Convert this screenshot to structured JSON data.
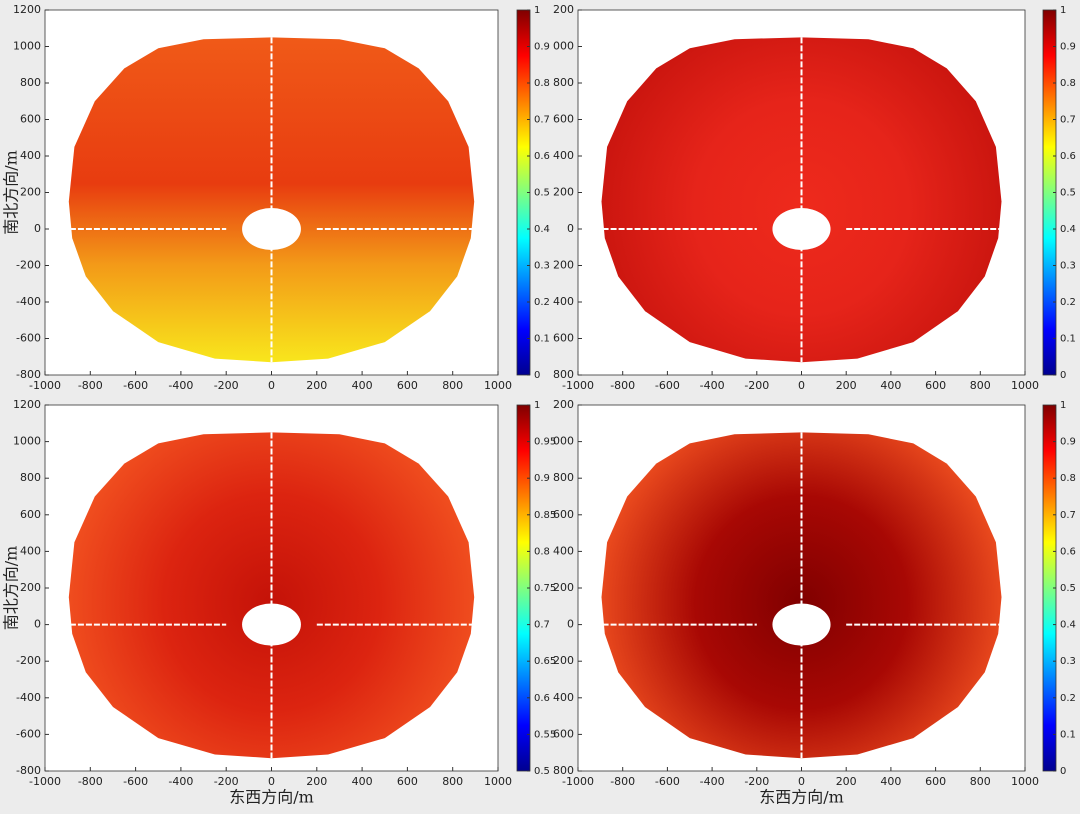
{
  "chart_data": [
    {
      "type": "heatmap",
      "ylabel": "南北方向/m",
      "xlim": [
        -1000,
        1000
      ],
      "xticks": [
        -1000,
        -800,
        -600,
        -400,
        -200,
        0,
        200,
        400,
        600,
        800,
        1000
      ],
      "ylim": [
        -800,
        1200
      ],
      "yticks": [
        -800,
        -600,
        -400,
        -200,
        0,
        200,
        400,
        600,
        800,
        1000,
        1200
      ],
      "colormap": "jet",
      "clim": [
        0,
        1
      ],
      "cticks": [
        0,
        0.1,
        0.2,
        0.3,
        0.4,
        0.5,
        0.6,
        0.7,
        0.8,
        0.9,
        1
      ],
      "field": {
        "style": "vertical",
        "colors": [
          "#f05a18",
          "#e83c10",
          "#f39a18",
          "#f8e61c"
        ]
      }
    },
    {
      "type": "heatmap",
      "xlim": [
        -1000,
        1000
      ],
      "xticks": [
        -1000,
        -800,
        -600,
        -400,
        -200,
        0,
        200,
        400,
        600,
        800,
        1000
      ],
      "ylim": [
        -800,
        1200
      ],
      "yticks": [
        {
          "value": -800,
          "label": "800"
        },
        {
          "value": -600,
          "label": "600"
        },
        {
          "value": -400,
          "label": "400"
        },
        {
          "value": -200,
          "label": "200"
        },
        0,
        200,
        400,
        600,
        800,
        {
          "value": 1000,
          "label": "000"
        },
        {
          "value": 1200,
          "label": "200"
        }
      ],
      "colormap": "jet",
      "clim": [
        0,
        1
      ],
      "cticks": [
        0,
        0.1,
        0.2,
        0.3,
        0.4,
        0.5,
        0.6,
        0.7,
        0.8,
        0.9,
        1
      ],
      "field": {
        "style": "radial",
        "colors": [
          "#ee2a1c",
          "#e6241a",
          "#c8140e"
        ]
      }
    },
    {
      "type": "heatmap",
      "xlabel": "东西方向/m",
      "ylabel": "南北方向/m",
      "xlim": [
        -1000,
        1000
      ],
      "xticks": [
        -1000,
        -800,
        -600,
        -400,
        -200,
        0,
        200,
        400,
        600,
        800,
        1000
      ],
      "ylim": [
        -800,
        1200
      ],
      "yticks": [
        -800,
        -600,
        -400,
        -200,
        0,
        200,
        400,
        600,
        800,
        1000,
        1200
      ],
      "colormap": "jet",
      "clim": [
        0.5,
        1
      ],
      "cticks": [
        0.5,
        0.55,
        0.6,
        0.65,
        0.7,
        0.75,
        0.8,
        0.85,
        0.9,
        0.95,
        1
      ],
      "field": {
        "style": "radial",
        "colors": [
          "#c41208",
          "#dc2410",
          "#f25220"
        ]
      }
    },
    {
      "type": "heatmap",
      "xlabel": "东西方向/m",
      "xlim": [
        -1000,
        1000
      ],
      "xticks": [
        -1000,
        -800,
        -600,
        -400,
        -200,
        0,
        200,
        400,
        600,
        800,
        1000
      ],
      "ylim": [
        -800,
        1200
      ],
      "yticks": [
        {
          "value": -800,
          "label": "800"
        },
        {
          "value": -600,
          "label": "600"
        },
        {
          "value": -400,
          "label": "400"
        },
        {
          "value": -200,
          "label": "200"
        },
        0,
        200,
        400,
        600,
        800,
        {
          "value": 1000,
          "label": "000"
        },
        {
          "value": 1200,
          "label": "200"
        }
      ],
      "colormap": "jet",
      "clim": [
        0,
        1
      ],
      "cticks": [
        0,
        0.1,
        0.2,
        0.3,
        0.4,
        0.5,
        0.6,
        0.7,
        0.8,
        0.9,
        1
      ],
      "field": {
        "style": "radial",
        "colors": [
          "#800000",
          "#a80804",
          "#f05020"
        ]
      }
    }
  ]
}
